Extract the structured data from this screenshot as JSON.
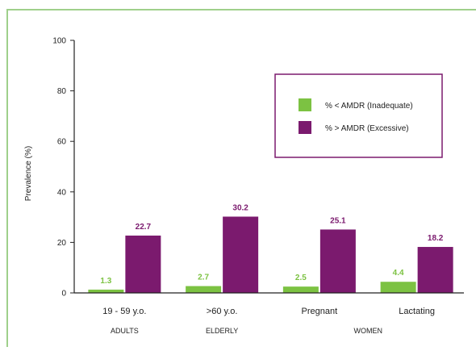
{
  "colors": {
    "frame_border": "#9fd08b",
    "inadequate": "#7cc242",
    "excessive": "#7b1a6e",
    "legend_border": "#7b1a6e",
    "axis": "#222222",
    "text": "#222222"
  },
  "chart_data": {
    "type": "bar",
    "title": "",
    "ylabel": "Prevalence (%)",
    "xlabel": "",
    "ylim": [
      0,
      100
    ],
    "yticks": [
      0,
      20,
      40,
      60,
      80,
      100
    ],
    "grid": false,
    "legend_position": "top-right",
    "categories": [
      "19 - 59 y.o.",
      ">60 y.o.",
      "Pregnant",
      "Lactating"
    ],
    "groups": [
      {
        "label": "ADULTS",
        "categories": [
          "19 - 59 y.o."
        ]
      },
      {
        "label": "ELDERLY",
        "categories": [
          ">60 y.o."
        ]
      },
      {
        "label": "WOMEN",
        "categories": [
          "Pregnant",
          "Lactating"
        ]
      }
    ],
    "series": [
      {
        "name": "% < AMDR (Inadequate)",
        "color": "#7cc242",
        "values": [
          1.3,
          2.7,
          2.5,
          4.4
        ]
      },
      {
        "name": "% > AMDR (Excessive)",
        "color": "#7b1a6e",
        "values": [
          22.7,
          30.2,
          25.1,
          18.2
        ]
      }
    ]
  }
}
